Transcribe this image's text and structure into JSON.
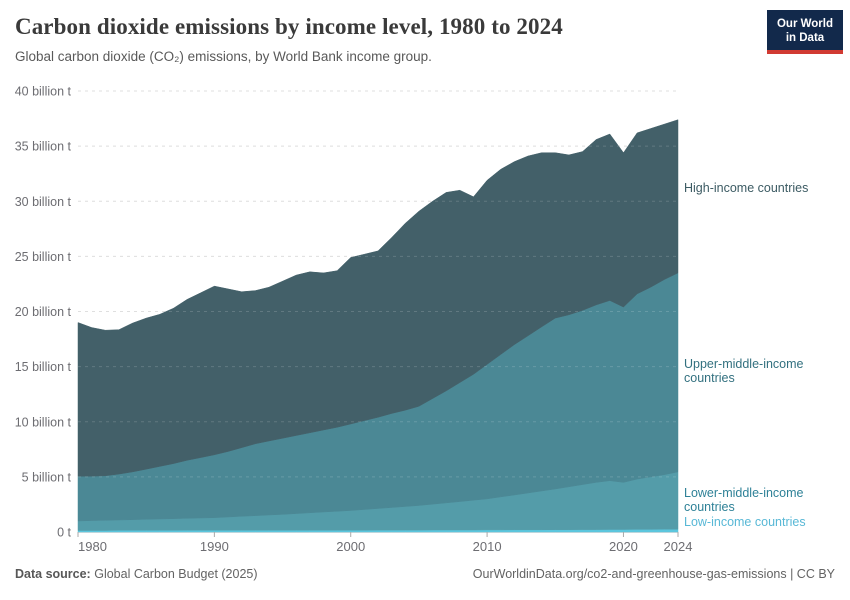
{
  "header": {
    "title": "Carbon dioxide emissions by income level, 1980 to 2024",
    "subtitle": "Global carbon dioxide (CO₂) emissions, by World Bank income group."
  },
  "logo": {
    "line1": "Our World",
    "line2": "in Data",
    "bg_color": "#12294b",
    "bar_color": "#d13a32"
  },
  "footer": {
    "data_source_label": "Data source:",
    "data_source_value": "Global Carbon Budget (2025)",
    "right_text": "OurWorldinData.org/co2-and-greenhouse-gas-emissions | CC BY"
  },
  "chart_data": {
    "type": "area",
    "stacked": true,
    "title": "Carbon dioxide emissions by income level, 1980 to 2024",
    "xlabel": "",
    "ylabel": "",
    "xlim": [
      1980,
      2024
    ],
    "ylim": [
      0,
      40
    ],
    "grid": "horizontal-dashed",
    "legend_position": "right-edge-entity-labels",
    "unit": "billion tonnes CO2",
    "x": [
      1980,
      1981,
      1982,
      1983,
      1984,
      1985,
      1986,
      1987,
      1988,
      1989,
      1990,
      1991,
      1992,
      1993,
      1994,
      1995,
      1996,
      1997,
      1998,
      1999,
      2000,
      2001,
      2002,
      2003,
      2004,
      2005,
      2006,
      2007,
      2008,
      2009,
      2010,
      2011,
      2012,
      2013,
      2014,
      2015,
      2016,
      2017,
      2018,
      2019,
      2020,
      2021,
      2022,
      2023,
      2024
    ],
    "xticks": [
      1980,
      1990,
      2000,
      2010,
      2020,
      2024
    ],
    "yticks": {
      "values": [
        0,
        5,
        10,
        15,
        20,
        25,
        30,
        35,
        40
      ],
      "labels": [
        "0 t",
        "5 billion t",
        "10 billion t",
        "15 billion t",
        "20 billion t",
        "25 billion t",
        "30 billion t",
        "35 billion t",
        "40 billion t"
      ]
    },
    "series": [
      {
        "name": "low-income",
        "label": "Low-income countries",
        "color": "#5cc6dd",
        "label_color": "#58b8d6",
        "values": [
          0.14,
          0.14,
          0.14,
          0.15,
          0.15,
          0.15,
          0.15,
          0.15,
          0.16,
          0.16,
          0.16,
          0.16,
          0.16,
          0.16,
          0.16,
          0.16,
          0.16,
          0.16,
          0.16,
          0.16,
          0.16,
          0.16,
          0.17,
          0.17,
          0.17,
          0.17,
          0.18,
          0.18,
          0.18,
          0.18,
          0.19,
          0.19,
          0.2,
          0.2,
          0.2,
          0.21,
          0.21,
          0.22,
          0.22,
          0.23,
          0.23,
          0.24,
          0.24,
          0.25,
          0.25
        ]
      },
      {
        "name": "lower-middle-income",
        "label": "Lower-middle-income countries",
        "color": "#549ca9",
        "label_color": "#2e8197",
        "values": [
          0.86,
          0.89,
          0.92,
          0.94,
          0.97,
          1.0,
          1.03,
          1.06,
          1.08,
          1.11,
          1.14,
          1.2,
          1.26,
          1.32,
          1.38,
          1.44,
          1.51,
          1.58,
          1.65,
          1.72,
          1.79,
          1.88,
          1.96,
          2.05,
          2.14,
          2.23,
          2.34,
          2.46,
          2.58,
          2.7,
          2.81,
          2.99,
          3.16,
          3.34,
          3.52,
          3.69,
          3.89,
          4.08,
          4.28,
          4.42,
          4.27,
          4.56,
          4.76,
          4.95,
          5.2
        ]
      },
      {
        "name": "upper-middle-income",
        "label": "Upper-middle-income countries",
        "color": "#4b8895",
        "label_color": "#32707f",
        "values": [
          4.05,
          4.03,
          4.04,
          4.16,
          4.33,
          4.55,
          4.77,
          4.99,
          5.26,
          5.48,
          5.7,
          5.94,
          6.23,
          6.52,
          6.71,
          6.9,
          7.08,
          7.26,
          7.44,
          7.62,
          7.85,
          8.06,
          8.27,
          8.53,
          8.74,
          9.0,
          9.58,
          10.16,
          10.79,
          11.42,
          12.2,
          12.92,
          13.64,
          14.26,
          14.88,
          15.5,
          15.6,
          15.8,
          16.1,
          16.35,
          15.9,
          16.8,
          17.2,
          17.7,
          18.05
        ]
      },
      {
        "name": "high-income",
        "label": "High-income countries",
        "color": "#436069",
        "label_color": "#3c5b63",
        "values": [
          13.95,
          13.49,
          13.2,
          13.1,
          13.5,
          13.7,
          13.8,
          14.1,
          14.6,
          14.95,
          15.3,
          14.75,
          14.15,
          13.9,
          13.95,
          14.25,
          14.55,
          14.6,
          14.25,
          14.2,
          15.1,
          15.1,
          15.1,
          15.95,
          16.95,
          17.7,
          17.9,
          18.0,
          17.45,
          16.1,
          16.7,
          16.8,
          16.6,
          16.3,
          15.8,
          15.0,
          14.5,
          14.4,
          15.0,
          15.1,
          14.0,
          14.6,
          14.4,
          14.1,
          13.9
        ]
      }
    ]
  }
}
